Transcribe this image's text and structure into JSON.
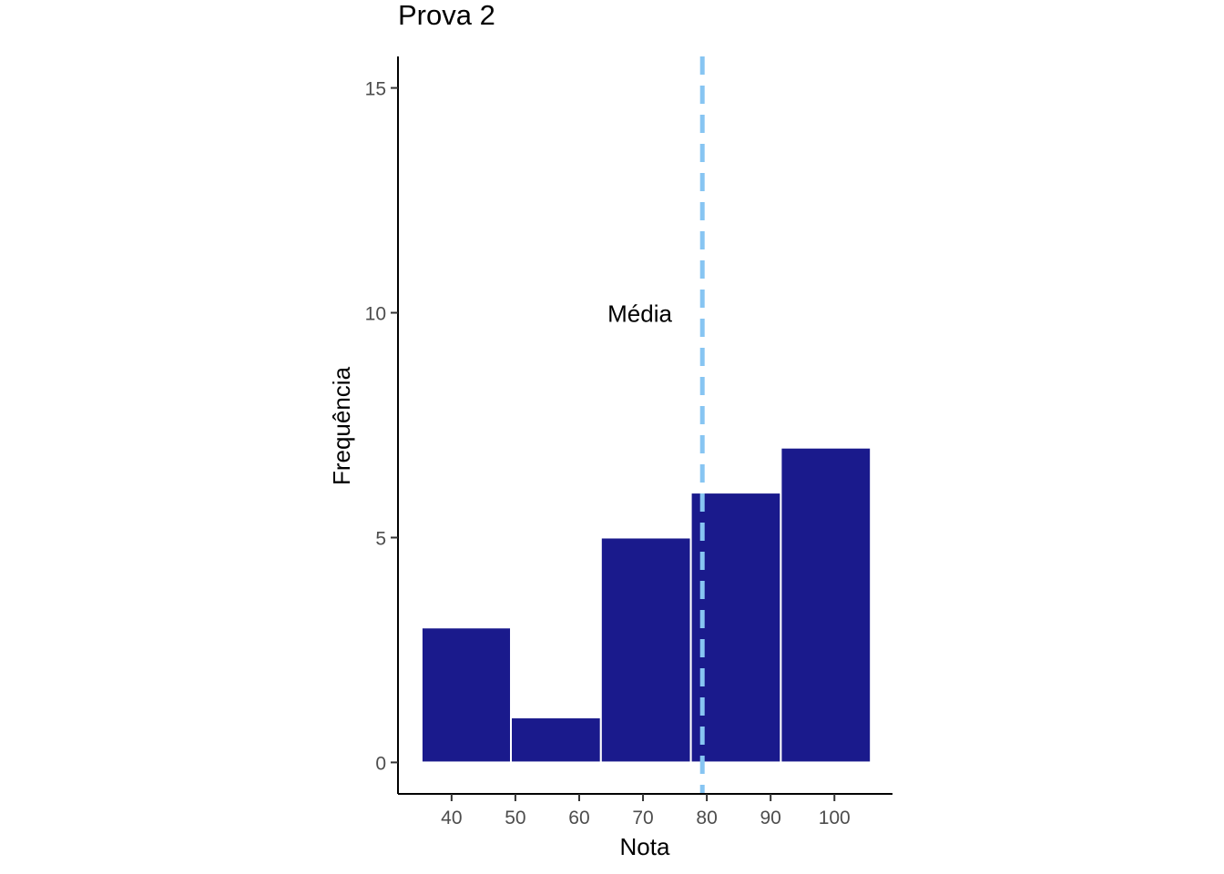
{
  "chart_data": {
    "type": "bar",
    "title": "Prova 2",
    "xlabel": "Nota",
    "ylabel": "Frequência",
    "xlim": [
      31.6,
      109.1
    ],
    "ylim": [
      -0.7,
      15.7
    ],
    "x_ticks": [
      40,
      50,
      60,
      70,
      80,
      90,
      100
    ],
    "y_ticks": [
      0,
      5,
      10,
      15
    ],
    "bins": [
      {
        "x0": 35.3,
        "x1": 49.3,
        "count": 3
      },
      {
        "x0": 49.3,
        "x1": 63.4,
        "count": 1
      },
      {
        "x0": 63.4,
        "x1": 77.5,
        "count": 5
      },
      {
        "x0": 77.5,
        "x1": 91.6,
        "count": 6
      },
      {
        "x0": 91.6,
        "x1": 105.7,
        "count": 7
      }
    ],
    "bar_color": "#1a1a8c",
    "bar_edge_color": "#ffffff",
    "grid": false,
    "mean_line": {
      "x": 79.3,
      "color": "#87c5f2",
      "style": "dashed"
    },
    "annotation": {
      "text": "Média",
      "x": 69.5,
      "y": 10
    }
  }
}
